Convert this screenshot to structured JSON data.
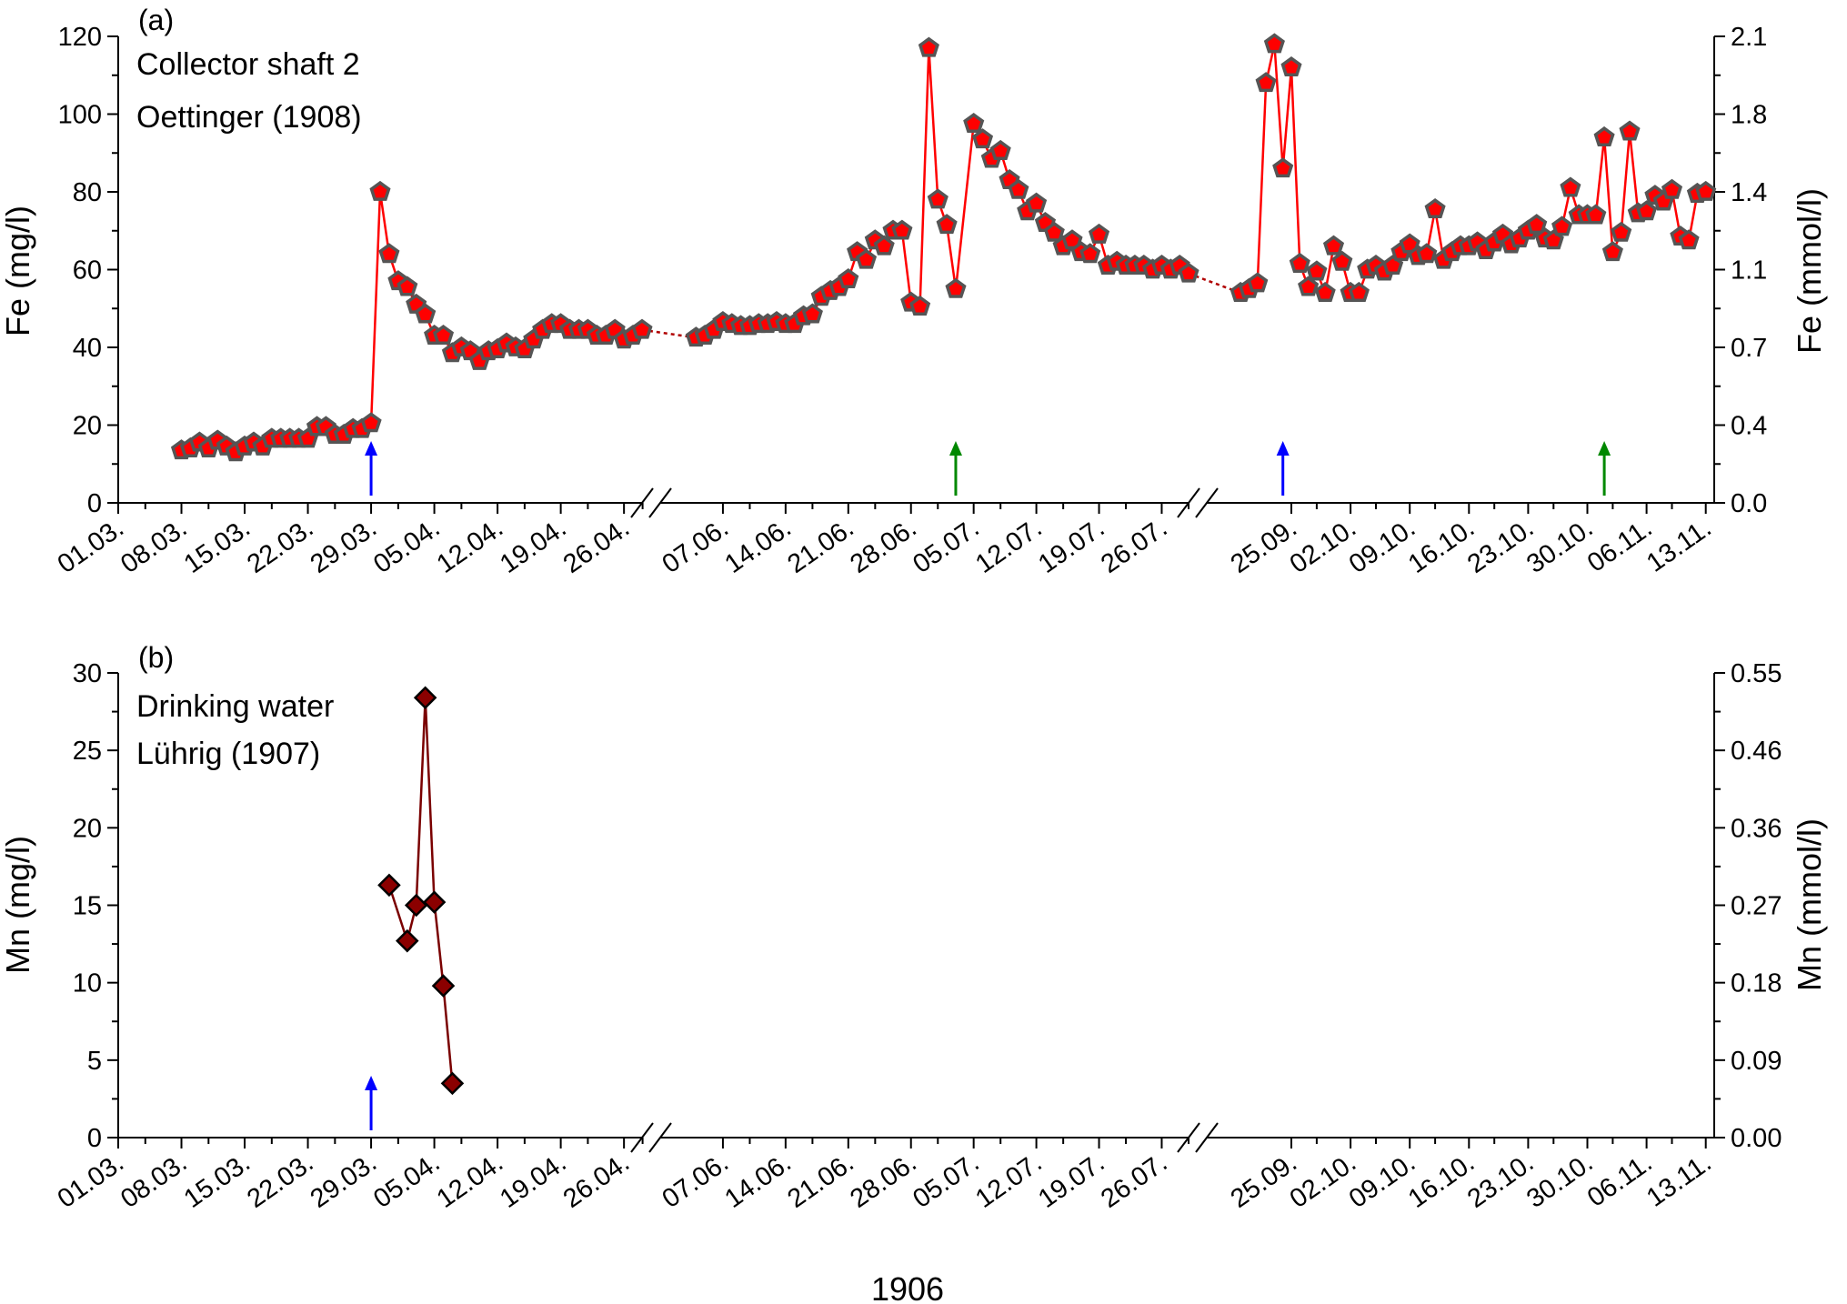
{
  "figure": {
    "xlabel": "1906"
  },
  "chart_data": [
    {
      "type": "line",
      "panel_label": "(a)",
      "annotation_lines": [
        "Collector shaft 2",
        "Oettinger (1908)"
      ],
      "ylabel": "Fe (mg/l)",
      "ylim": [
        0,
        120
      ],
      "yticks": [
        0,
        20,
        40,
        60,
        80,
        100,
        120
      ],
      "y2label": "Fe (mmol/l)",
      "y2ticks": [
        "0.0",
        "0.4",
        "0.7",
        "1.1",
        "1.4",
        "1.8",
        "2.1"
      ],
      "x_ticks": [
        "01.03.",
        "08.03.",
        "15.03.",
        "22.03.",
        "29.03.",
        "05.04.",
        "12.04.",
        "19.04.",
        "26.04.",
        "07.06.",
        "14.06.",
        "21.06.",
        "28.06.",
        "05.07.",
        "12.07.",
        "19.07.",
        "26.07.",
        "25.09.",
        "02.10.",
        "09.10.",
        "16.10.",
        "23.10.",
        "30.10.",
        "06.11.",
        "13.11."
      ],
      "colors": {
        "line": "#ff0000",
        "marker_fill": "#ff0000",
        "marker_edge": "#555555"
      },
      "marker": "pentagon",
      "segment_links": "dotted",
      "series": [
        {
          "dates": [
            "1906-03-08",
            "1906-03-09",
            "1906-03-10",
            "1906-03-11",
            "1906-03-12",
            "1906-03-13",
            "1906-03-14",
            "1906-03-15",
            "1906-03-16",
            "1906-03-17",
            "1906-03-18",
            "1906-03-19",
            "1906-03-20",
            "1906-03-21",
            "1906-03-22",
            "1906-03-23",
            "1906-03-24",
            "1906-03-25",
            "1906-03-26",
            "1906-03-27",
            "1906-03-28",
            "1906-03-29",
            "1906-03-30",
            "1906-03-31",
            "1906-04-01",
            "1906-04-02",
            "1906-04-03",
            "1906-04-04",
            "1906-04-05",
            "1906-04-06",
            "1906-04-07",
            "1906-04-08",
            "1906-04-09",
            "1906-04-10",
            "1906-04-11",
            "1906-04-12",
            "1906-04-13",
            "1906-04-14",
            "1906-04-15",
            "1906-04-16",
            "1906-04-17",
            "1906-04-18",
            "1906-04-19",
            "1906-04-20",
            "1906-04-21",
            "1906-04-22",
            "1906-04-23",
            "1906-04-24",
            "1906-04-25",
            "1906-04-26",
            "1906-04-27",
            "1906-04-28"
          ],
          "values": [
            13.5,
            14,
            15.5,
            14,
            16,
            14.5,
            13,
            14.5,
            15.5,
            14.5,
            16.5,
            16.5,
            16.5,
            16.5,
            16.5,
            19.5,
            19.5,
            17.5,
            17.5,
            19,
            19,
            20.5,
            80,
            64,
            57,
            55.5,
            51,
            48.5,
            43,
            43,
            38.5,
            40,
            39,
            36.5,
            39,
            39.5,
            41,
            40,
            39.5,
            42,
            44.5,
            46,
            46,
            44.5,
            44.5,
            44.5,
            43,
            43,
            44.5,
            42,
            43,
            44.5
          ]
        },
        {
          "dates": [
            "1906-06-04",
            "1906-06-05",
            "1906-06-06",
            "1906-06-07",
            "1906-06-08",
            "1906-06-09",
            "1906-06-10",
            "1906-06-11",
            "1906-06-12",
            "1906-06-13",
            "1906-06-14",
            "1906-06-15",
            "1906-06-16",
            "1906-06-17",
            "1906-06-18",
            "1906-06-19",
            "1906-06-20",
            "1906-06-21",
            "1906-06-22",
            "1906-06-23",
            "1906-06-24",
            "1906-06-25",
            "1906-06-26",
            "1906-06-27",
            "1906-06-28",
            "1906-06-29",
            "1906-06-30",
            "1906-07-01",
            "1906-07-02",
            "1906-07-03",
            "1906-07-05",
            "1906-07-06",
            "1906-07-07",
            "1906-07-08",
            "1906-07-09",
            "1906-07-10",
            "1906-07-11",
            "1906-07-12",
            "1906-07-13",
            "1906-07-14",
            "1906-07-15",
            "1906-07-16",
            "1906-07-17",
            "1906-07-18",
            "1906-07-19",
            "1906-07-20",
            "1906-07-21",
            "1906-07-22",
            "1906-07-23",
            "1906-07-24",
            "1906-07-25",
            "1906-07-26",
            "1906-07-27",
            "1906-07-28",
            "1906-07-29"
          ],
          "values": [
            42.5,
            43,
            44.5,
            46.5,
            46,
            45.5,
            45.5,
            46,
            46,
            46.5,
            46,
            46,
            48,
            48.5,
            53,
            54.5,
            55.5,
            57.5,
            64.5,
            62.5,
            67.5,
            66,
            70,
            70,
            51.5,
            50.5,
            117,
            78,
            71.5,
            55,
            97.5,
            93.5,
            88.5,
            90.5,
            83,
            80.5,
            75,
            77,
            72,
            69.5,
            66,
            67.5,
            64.5,
            64,
            69,
            61,
            62,
            61,
            61,
            61,
            60,
            61,
            60,
            61,
            59
          ]
        },
        {
          "dates": [
            "1906-09-19",
            "1906-09-20",
            "1906-09-21",
            "1906-09-22",
            "1906-09-23",
            "1906-09-24",
            "1906-09-25",
            "1906-09-26",
            "1906-09-27",
            "1906-09-28",
            "1906-09-29",
            "1906-09-30",
            "1906-10-01",
            "1906-10-02",
            "1906-10-03",
            "1906-10-04",
            "1906-10-05",
            "1906-10-06",
            "1906-10-07",
            "1906-10-08",
            "1906-10-09",
            "1906-10-10",
            "1906-10-11",
            "1906-10-12",
            "1906-10-13",
            "1906-10-14",
            "1906-10-15",
            "1906-10-16",
            "1906-10-17",
            "1906-10-18",
            "1906-10-19",
            "1906-10-20",
            "1906-10-21",
            "1906-10-22",
            "1906-10-23",
            "1906-10-24",
            "1906-10-25",
            "1906-10-26",
            "1906-10-27",
            "1906-10-28",
            "1906-10-29",
            "1906-10-30",
            "1906-10-31",
            "1906-11-01",
            "1906-11-02",
            "1906-11-03",
            "1906-11-04",
            "1906-11-05",
            "1906-11-06",
            "1906-11-07",
            "1906-11-08",
            "1906-11-09",
            "1906-11-10",
            "1906-11-11",
            "1906-11-12",
            "1906-11-13"
          ],
          "values": [
            54,
            55,
            56.5,
            108,
            118,
            86,
            112,
            61.5,
            55.5,
            59.5,
            54,
            66,
            62,
            54,
            54,
            60,
            61,
            59.5,
            61,
            64.5,
            66.5,
            63.5,
            64,
            75.5,
            62.5,
            64.5,
            66,
            66,
            67,
            65,
            67,
            69,
            66.5,
            68,
            70,
            71.5,
            68,
            67.5,
            71,
            81,
            74,
            74,
            74,
            94,
            64.5,
            69.5,
            95.5,
            74.5,
            75,
            79,
            77.5,
            80.5,
            68.5,
            67.5,
            79.5,
            80
          ]
        }
      ],
      "arrows": [
        {
          "date": "1906-03-29",
          "color": "#0000ff"
        },
        {
          "date": "1906-07-03",
          "color": "#008800"
        },
        {
          "date": "1906-09-24",
          "color": "#0000ff"
        },
        {
          "date": "1906-11-01",
          "color": "#008800"
        }
      ]
    },
    {
      "type": "line",
      "panel_label": "(b)",
      "annotation_lines": [
        "Drinking water",
        "Lührig (1907)"
      ],
      "ylabel": "Mn (mg/l)",
      "ylim": [
        0,
        30
      ],
      "yticks": [
        0,
        5,
        10,
        15,
        20,
        25,
        30
      ],
      "y2label": "Mn (mmol/l)",
      "y2ticks": [
        "0.00",
        "0.09",
        "0.18",
        "0.27",
        "0.36",
        "0.46",
        "0.55"
      ],
      "x_ticks": [
        "01.03.",
        "08.03.",
        "15.03.",
        "22.03.",
        "29.03.",
        "05.04.",
        "12.04.",
        "19.04.",
        "26.04.",
        "07.06.",
        "14.06.",
        "21.06.",
        "28.06.",
        "05.07.",
        "12.07.",
        "19.07.",
        "26.07.",
        "25.09.",
        "02.10.",
        "09.10.",
        "16.10.",
        "23.10.",
        "30.10.",
        "06.11.",
        "13.11."
      ],
      "colors": {
        "line": "#7a0000",
        "marker_fill": "#8b0000",
        "marker_edge": "#000000"
      },
      "marker": "diamond",
      "series": [
        {
          "dates": [
            "1906-03-31",
            "1906-04-02",
            "1906-04-03",
            "1906-04-04",
            "1906-04-05",
            "1906-04-06",
            "1906-04-07"
          ],
          "values": [
            16.3,
            12.7,
            15,
            28.4,
            15.2,
            9.8,
            3.5
          ]
        }
      ],
      "arrows": [
        {
          "date": "1906-03-29",
          "color": "#0000ff"
        }
      ]
    }
  ]
}
